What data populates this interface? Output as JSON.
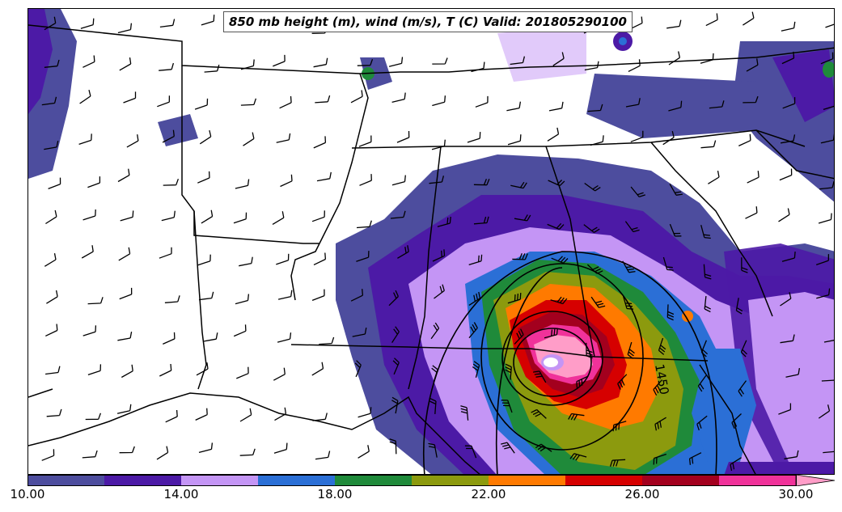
{
  "title": "850 mb height (m), wind (m/s), T (C) Valid: 201805290100",
  "contour_label": "1450",
  "colorbar": {
    "min": 10,
    "max": 31,
    "step": 2,
    "colors": [
      "#4d4d9e",
      "#4c1aa6",
      "#c495f5",
      "#2b6fd6",
      "#1f8a3a",
      "#8c9a0e",
      "#ff7a00",
      "#d60000",
      "#a3001e",
      "#f0329a",
      "#ff9dc8"
    ],
    "ticks": [
      "10.00",
      "14.00",
      "18.00",
      "22.00",
      "26.00",
      "30.00"
    ]
  },
  "palette": {
    "state_border": "#000000",
    "background": "#ffffff"
  }
}
